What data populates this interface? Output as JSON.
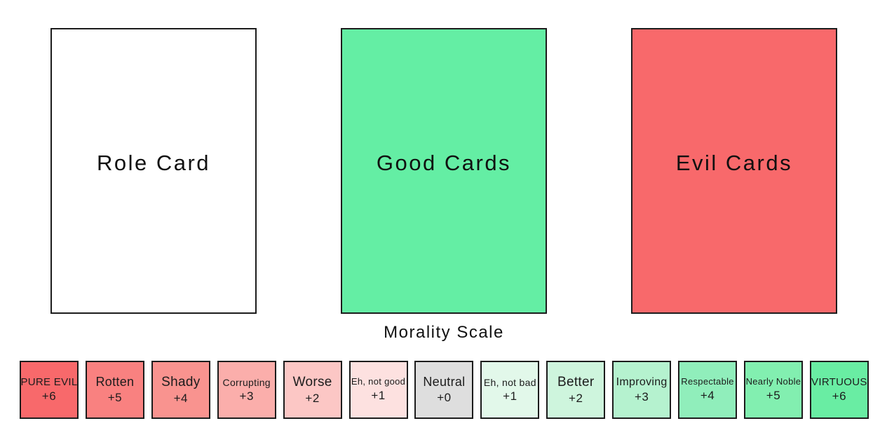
{
  "colors": {
    "border": "#1c1c1c",
    "text": "#101010",
    "good_green": "#64eea4",
    "evil_red": "#f8696b",
    "neutral_gray": "#dedede"
  },
  "piles": [
    {
      "label": "Role Card",
      "bg": "#ffffff"
    },
    {
      "label": "Good Cards",
      "bg": "#64eea4"
    },
    {
      "label": "Evil Cards",
      "bg": "#f8696b"
    }
  ],
  "scale": {
    "title": "Morality Scale",
    "items": [
      {
        "label": "PURE EVIL",
        "value": "+6",
        "bg": "#f8696b"
      },
      {
        "label": "Rotten",
        "value": "+5",
        "bg": "#f98180"
      },
      {
        "label": "Shady",
        "value": "+4",
        "bg": "#f9938f"
      },
      {
        "label": "Corrupting",
        "value": "+3",
        "bg": "#fbaeab"
      },
      {
        "label": "Worse",
        "value": "+2",
        "bg": "#fcc7c5"
      },
      {
        "label": "Eh, not good",
        "value": "+1",
        "bg": "#fde1e0"
      },
      {
        "label": "Neutral",
        "value": "+0",
        "bg": "#dedede"
      },
      {
        "label": "Eh, not bad",
        "value": "+1",
        "bg": "#e2f8ea"
      },
      {
        "label": "Better",
        "value": "+2",
        "bg": "#cef5dd"
      },
      {
        "label": "Improving",
        "value": "+3",
        "bg": "#b5f2cf"
      },
      {
        "label": "Respectable",
        "value": "+4",
        "bg": "#90eebb"
      },
      {
        "label": "Nearly Noble",
        "value": "+5",
        "bg": "#82efb0"
      },
      {
        "label": "VIRTUOUS",
        "value": "+6",
        "bg": "#69eda3"
      }
    ]
  }
}
